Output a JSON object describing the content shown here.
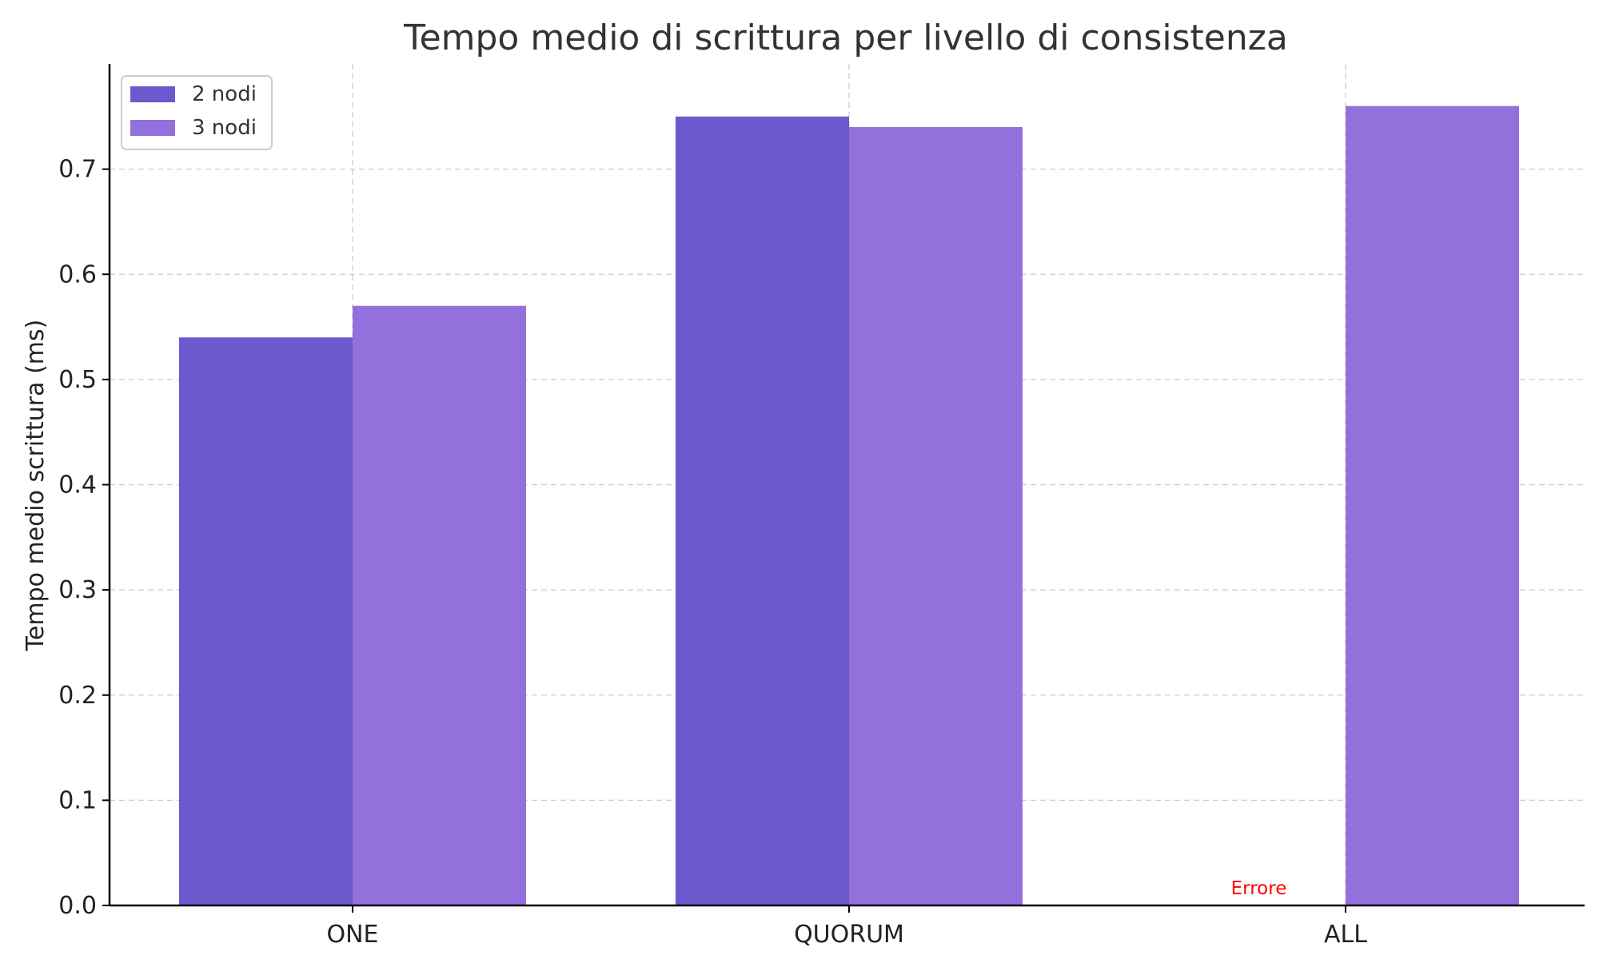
{
  "chart_data": {
    "type": "bar",
    "title": "Tempo medio di scrittura per livello di consistenza",
    "xlabel": "",
    "ylabel": "Tempo medio scrittura (ms)",
    "categories": [
      "ONE",
      "QUORUM",
      "ALL"
    ],
    "series": [
      {
        "name": "2 nodi",
        "color": "#6a5acd",
        "values": [
          0.54,
          0.75,
          null
        ]
      },
      {
        "name": "3 nodi",
        "color": "#9370db",
        "values": [
          0.57,
          0.74,
          0.76
        ]
      }
    ],
    "ylim": [
      0,
      0.8
    ],
    "yticks": [
      "0.0",
      "0.1",
      "0.2",
      "0.3",
      "0.4",
      "0.5",
      "0.6",
      "0.7"
    ],
    "grid": true,
    "legend_position": "top-left",
    "annotations": [
      {
        "text": "Errore",
        "category": "ALL",
        "series": "2 nodi",
        "color": "#ff0000"
      }
    ]
  }
}
